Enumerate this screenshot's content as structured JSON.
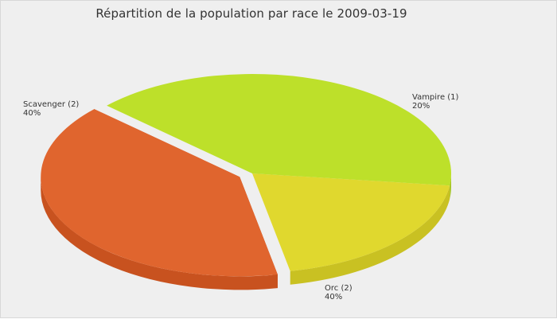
{
  "chart_data": {
    "type": "pie",
    "title": "Répartition de la population par race le 2009-03-19",
    "categories": [
      "Vampire",
      "Orc",
      "Scavenger"
    ],
    "values": [
      1,
      2,
      2
    ],
    "percentages": [
      20,
      40,
      40
    ],
    "labels": [
      {
        "name": "Vampire (1)",
        "percent": "20%"
      },
      {
        "name": "Orc (2)",
        "percent": "40%"
      },
      {
        "name": "Scavenger (2)",
        "percent": "40%"
      }
    ],
    "colors": [
      "#e0d82e",
      "#bde02a",
      "#e0652e"
    ],
    "side_colors": [
      "#c9c122",
      "#a4c41e",
      "#c8521f"
    ],
    "exploded": "Scavenger",
    "style": "3d"
  }
}
